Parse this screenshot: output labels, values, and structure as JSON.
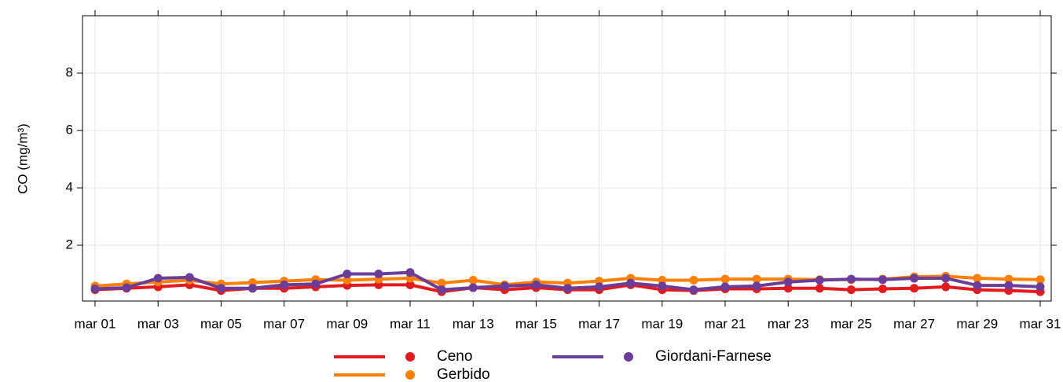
{
  "chart_data": {
    "type": "line",
    "y_label": "CO (mg/m³)",
    "categories": [
      "mar 01",
      null,
      "mar 03",
      null,
      "mar 05",
      null,
      "mar 07",
      null,
      "mar 09",
      null,
      "mar 11",
      null,
      "mar 13",
      null,
      "mar 15",
      null,
      "mar 17",
      null,
      "mar 19",
      null,
      "mar 21",
      null,
      "mar 23",
      null,
      "mar 25",
      null,
      "mar 27",
      null,
      "mar 29",
      null,
      "mar 31"
    ],
    "series": [
      {
        "name": "Ceno",
        "color": "#e41a1c",
        "values": [
          0.45,
          0.5,
          0.55,
          0.62,
          0.42,
          0.5,
          0.5,
          0.55,
          0.6,
          0.62,
          0.62,
          0.38,
          0.52,
          0.45,
          0.52,
          0.45,
          0.45,
          0.62,
          0.45,
          0.42,
          0.48,
          0.48,
          0.5,
          0.5,
          0.45,
          0.48,
          0.5,
          0.55,
          0.45,
          0.42,
          0.38
        ]
      },
      {
        "name": "Gerbido",
        "color": "#ff7f00",
        "values": [
          0.58,
          0.65,
          0.72,
          0.78,
          0.65,
          0.7,
          0.75,
          0.8,
          0.78,
          0.82,
          0.85,
          0.68,
          0.78,
          0.62,
          0.72,
          0.68,
          0.75,
          0.85,
          0.78,
          0.78,
          0.82,
          0.82,
          0.82,
          0.8,
          0.8,
          0.82,
          0.9,
          0.92,
          0.85,
          0.82,
          0.8
        ]
      },
      {
        "name": "Giordani-Farnese",
        "color": "#6a3d9a",
        "values": [
          0.48,
          0.52,
          0.85,
          0.88,
          0.5,
          0.5,
          0.62,
          0.65,
          1.0,
          1.0,
          1.05,
          0.45,
          0.52,
          0.58,
          0.62,
          0.5,
          0.55,
          0.68,
          0.58,
          0.45,
          0.55,
          0.58,
          0.72,
          0.78,
          0.82,
          0.8,
          0.85,
          0.85,
          0.6,
          0.6,
          0.55
        ]
      }
    ],
    "ylim": [
      0,
      10
    ],
    "yticks": [
      2,
      4,
      6,
      8
    ],
    "grid": true,
    "legend": "bottom"
  }
}
